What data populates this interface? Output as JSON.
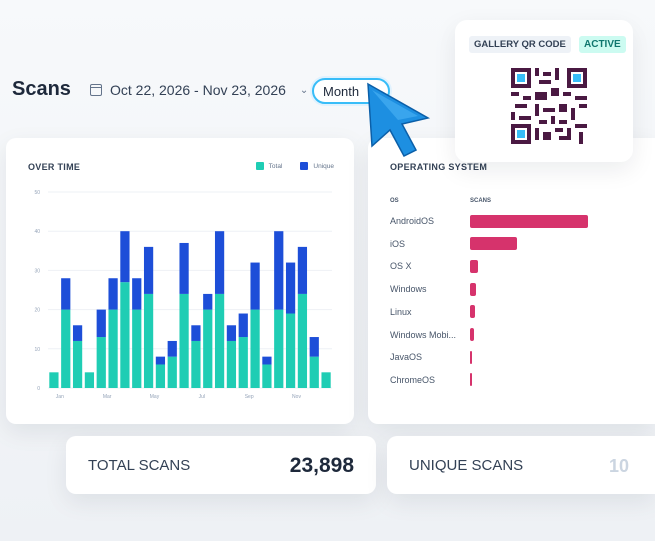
{
  "header": {
    "title": "Scans",
    "date_range": "Oct 22, 2026 - Nov 23, 2026",
    "period_button": "Month"
  },
  "qr_card": {
    "label": "GALLERY QR CODE",
    "status": "ACTIVE"
  },
  "over_time": {
    "title": "OVER TIME",
    "legend": [
      "Total",
      "Unique"
    ]
  },
  "operating_system": {
    "title": "OPERATING SYSTEM",
    "col_os": "OS",
    "col_scans": "SCANS",
    "rows": [
      {
        "name": "AndroidOS",
        "value": 100
      },
      {
        "name": "iOS",
        "value": 40
      },
      {
        "name": "OS X",
        "value": 7
      },
      {
        "name": "Windows",
        "value": 5
      },
      {
        "name": "Linux",
        "value": 4
      },
      {
        "name": "Windows Mobi...",
        "value": 3
      },
      {
        "name": "JavaOS",
        "value": 2
      },
      {
        "name": "ChromeOS",
        "value": 2
      }
    ]
  },
  "stats": {
    "total_label": "TOTAL SCANS",
    "total_value": "23,898",
    "unique_label": "UNIQUE SCANS",
    "unique_value": "10"
  },
  "colors": {
    "total": "#1fcdb4",
    "unique": "#1d4ed8",
    "os_bar": "#d6336c",
    "accent": "#38bdf8"
  },
  "chart_data": {
    "type": "bar",
    "title": "OVER TIME",
    "x_ticks": [
      "Jan",
      "Mar",
      "May",
      "Jul",
      "Sep",
      "Nov"
    ],
    "y_ticks": [
      0,
      10,
      20,
      30,
      40,
      50
    ],
    "ylim": [
      0,
      50
    ],
    "series": [
      {
        "name": "Total",
        "values": [
          4,
          20,
          12,
          4,
          13,
          20,
          27,
          20,
          24,
          6,
          8,
          24,
          12,
          20,
          24,
          12,
          13,
          20,
          6,
          20,
          19,
          24,
          8,
          4
        ]
      },
      {
        "name": "Unique",
        "values": [
          0,
          8,
          4,
          0,
          7,
          8,
          13,
          8,
          12,
          2,
          4,
          13,
          4,
          4,
          16,
          4,
          6,
          12,
          2,
          20,
          13,
          12,
          5,
          0
        ]
      }
    ]
  }
}
